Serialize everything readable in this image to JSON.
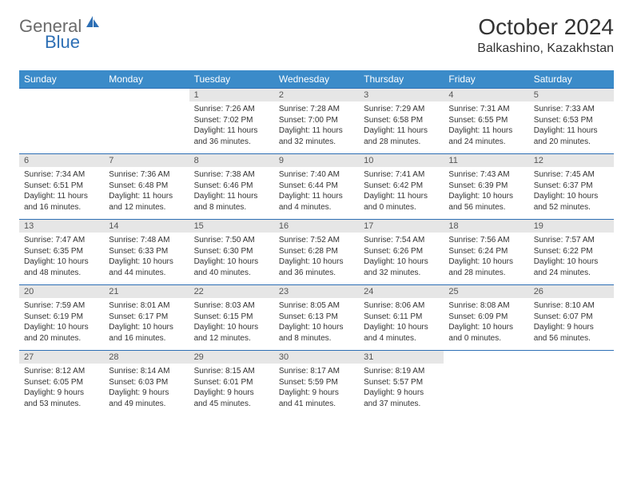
{
  "logo": {
    "general": "General",
    "blue": "Blue"
  },
  "title": "October 2024",
  "location": "Balkashino, Kazakhstan",
  "weekdays": [
    "Sunday",
    "Monday",
    "Tuesday",
    "Wednesday",
    "Thursday",
    "Friday",
    "Saturday"
  ],
  "colors": {
    "header_bg": "#3b8bc9",
    "header_fg": "#ffffff",
    "daynum_bg": "#e6e6e6",
    "border": "#2d6fb5",
    "logo_gray": "#6b6b6b",
    "logo_blue": "#2d6fb5"
  },
  "weeks": [
    [
      {
        "empty": true
      },
      {
        "empty": true
      },
      {
        "num": "1",
        "sunrise": "Sunrise: 7:26 AM",
        "sunset": "Sunset: 7:02 PM",
        "daylight": "Daylight: 11 hours and 36 minutes."
      },
      {
        "num": "2",
        "sunrise": "Sunrise: 7:28 AM",
        "sunset": "Sunset: 7:00 PM",
        "daylight": "Daylight: 11 hours and 32 minutes."
      },
      {
        "num": "3",
        "sunrise": "Sunrise: 7:29 AM",
        "sunset": "Sunset: 6:58 PM",
        "daylight": "Daylight: 11 hours and 28 minutes."
      },
      {
        "num": "4",
        "sunrise": "Sunrise: 7:31 AM",
        "sunset": "Sunset: 6:55 PM",
        "daylight": "Daylight: 11 hours and 24 minutes."
      },
      {
        "num": "5",
        "sunrise": "Sunrise: 7:33 AM",
        "sunset": "Sunset: 6:53 PM",
        "daylight": "Daylight: 11 hours and 20 minutes."
      }
    ],
    [
      {
        "num": "6",
        "sunrise": "Sunrise: 7:34 AM",
        "sunset": "Sunset: 6:51 PM",
        "daylight": "Daylight: 11 hours and 16 minutes."
      },
      {
        "num": "7",
        "sunrise": "Sunrise: 7:36 AM",
        "sunset": "Sunset: 6:48 PM",
        "daylight": "Daylight: 11 hours and 12 minutes."
      },
      {
        "num": "8",
        "sunrise": "Sunrise: 7:38 AM",
        "sunset": "Sunset: 6:46 PM",
        "daylight": "Daylight: 11 hours and 8 minutes."
      },
      {
        "num": "9",
        "sunrise": "Sunrise: 7:40 AM",
        "sunset": "Sunset: 6:44 PM",
        "daylight": "Daylight: 11 hours and 4 minutes."
      },
      {
        "num": "10",
        "sunrise": "Sunrise: 7:41 AM",
        "sunset": "Sunset: 6:42 PM",
        "daylight": "Daylight: 11 hours and 0 minutes."
      },
      {
        "num": "11",
        "sunrise": "Sunrise: 7:43 AM",
        "sunset": "Sunset: 6:39 PM",
        "daylight": "Daylight: 10 hours and 56 minutes."
      },
      {
        "num": "12",
        "sunrise": "Sunrise: 7:45 AM",
        "sunset": "Sunset: 6:37 PM",
        "daylight": "Daylight: 10 hours and 52 minutes."
      }
    ],
    [
      {
        "num": "13",
        "sunrise": "Sunrise: 7:47 AM",
        "sunset": "Sunset: 6:35 PM",
        "daylight": "Daylight: 10 hours and 48 minutes."
      },
      {
        "num": "14",
        "sunrise": "Sunrise: 7:48 AM",
        "sunset": "Sunset: 6:33 PM",
        "daylight": "Daylight: 10 hours and 44 minutes."
      },
      {
        "num": "15",
        "sunrise": "Sunrise: 7:50 AM",
        "sunset": "Sunset: 6:30 PM",
        "daylight": "Daylight: 10 hours and 40 minutes."
      },
      {
        "num": "16",
        "sunrise": "Sunrise: 7:52 AM",
        "sunset": "Sunset: 6:28 PM",
        "daylight": "Daylight: 10 hours and 36 minutes."
      },
      {
        "num": "17",
        "sunrise": "Sunrise: 7:54 AM",
        "sunset": "Sunset: 6:26 PM",
        "daylight": "Daylight: 10 hours and 32 minutes."
      },
      {
        "num": "18",
        "sunrise": "Sunrise: 7:56 AM",
        "sunset": "Sunset: 6:24 PM",
        "daylight": "Daylight: 10 hours and 28 minutes."
      },
      {
        "num": "19",
        "sunrise": "Sunrise: 7:57 AM",
        "sunset": "Sunset: 6:22 PM",
        "daylight": "Daylight: 10 hours and 24 minutes."
      }
    ],
    [
      {
        "num": "20",
        "sunrise": "Sunrise: 7:59 AM",
        "sunset": "Sunset: 6:19 PM",
        "daylight": "Daylight: 10 hours and 20 minutes."
      },
      {
        "num": "21",
        "sunrise": "Sunrise: 8:01 AM",
        "sunset": "Sunset: 6:17 PM",
        "daylight": "Daylight: 10 hours and 16 minutes."
      },
      {
        "num": "22",
        "sunrise": "Sunrise: 8:03 AM",
        "sunset": "Sunset: 6:15 PM",
        "daylight": "Daylight: 10 hours and 12 minutes."
      },
      {
        "num": "23",
        "sunrise": "Sunrise: 8:05 AM",
        "sunset": "Sunset: 6:13 PM",
        "daylight": "Daylight: 10 hours and 8 minutes."
      },
      {
        "num": "24",
        "sunrise": "Sunrise: 8:06 AM",
        "sunset": "Sunset: 6:11 PM",
        "daylight": "Daylight: 10 hours and 4 minutes."
      },
      {
        "num": "25",
        "sunrise": "Sunrise: 8:08 AM",
        "sunset": "Sunset: 6:09 PM",
        "daylight": "Daylight: 10 hours and 0 minutes."
      },
      {
        "num": "26",
        "sunrise": "Sunrise: 8:10 AM",
        "sunset": "Sunset: 6:07 PM",
        "daylight": "Daylight: 9 hours and 56 minutes."
      }
    ],
    [
      {
        "num": "27",
        "sunrise": "Sunrise: 8:12 AM",
        "sunset": "Sunset: 6:05 PM",
        "daylight": "Daylight: 9 hours and 53 minutes."
      },
      {
        "num": "28",
        "sunrise": "Sunrise: 8:14 AM",
        "sunset": "Sunset: 6:03 PM",
        "daylight": "Daylight: 9 hours and 49 minutes."
      },
      {
        "num": "29",
        "sunrise": "Sunrise: 8:15 AM",
        "sunset": "Sunset: 6:01 PM",
        "daylight": "Daylight: 9 hours and 45 minutes."
      },
      {
        "num": "30",
        "sunrise": "Sunrise: 8:17 AM",
        "sunset": "Sunset: 5:59 PM",
        "daylight": "Daylight: 9 hours and 41 minutes."
      },
      {
        "num": "31",
        "sunrise": "Sunrise: 8:19 AM",
        "sunset": "Sunset: 5:57 PM",
        "daylight": "Daylight: 9 hours and 37 minutes."
      },
      {
        "empty": true
      },
      {
        "empty": true
      }
    ]
  ]
}
